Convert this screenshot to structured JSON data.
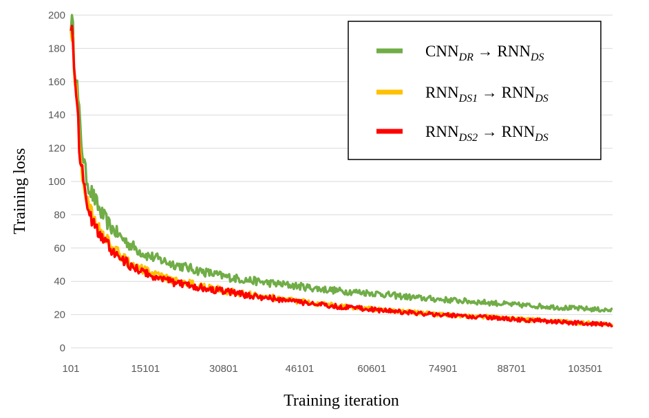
{
  "chart_data": {
    "type": "line",
    "xlabel": "Training iteration",
    "ylabel": "Training loss",
    "x_tick_labels": [
      "101",
      "15101",
      "30801",
      "46101",
      "60601",
      "74901",
      "88701",
      "103501"
    ],
    "y_tick_labels": [
      "0",
      "20",
      "40",
      "60",
      "80",
      "100",
      "120",
      "140",
      "160",
      "180",
      "200"
    ],
    "xlim": [
      101,
      109000
    ],
    "ylim": [
      0,
      200
    ],
    "grid": "horizontal",
    "legend_position": "top-right",
    "legend": [
      {
        "main": "CNN",
        "sub": "DR",
        "arrow": "→",
        "target_main": "RNN",
        "target_sub": "DS",
        "color": "#70ad47"
      },
      {
        "main": "RNN",
        "sub": "DS1",
        "arrow": "→",
        "target_main": "RNN",
        "target_sub": "DS",
        "color": "#ffc000"
      },
      {
        "main": "RNN",
        "sub": "DS2",
        "arrow": "→",
        "target_main": "RNN",
        "target_sub": "DS",
        "color": "#ff0000"
      }
    ],
    "series": [
      {
        "name": "CNN_DR → RNN_DS",
        "color": "#70ad47",
        "x": [
          101,
          1000,
          2000,
          3000,
          4000,
          6000,
          8000,
          10000,
          12000,
          15101,
          20000,
          25000,
          30801,
          35000,
          40000,
          46101,
          50000,
          55000,
          60601,
          65000,
          70000,
          74901,
          80000,
          85000,
          88701,
          95000,
          100000,
          103501,
          109000
        ],
        "y": [
          200,
          170,
          130,
          105,
          95,
          82,
          73,
          67,
          62,
          56,
          51,
          47,
          43,
          41,
          39,
          37,
          35.5,
          34,
          33,
          31.5,
          30,
          29,
          28,
          27,
          26,
          25,
          24,
          23.5,
          22.5
        ]
      },
      {
        "name": "RNN_DS1 → RNN_DS",
        "color": "#ffc000",
        "x": [
          101,
          1000,
          2000,
          3000,
          4000,
          6000,
          8000,
          10000,
          12000,
          15101,
          20000,
          25000,
          30801,
          35000,
          40000,
          46101,
          50000,
          55000,
          60601,
          65000,
          70000,
          74901,
          80000,
          85000,
          88701,
          95000,
          100000,
          103501,
          109000
        ],
        "y": [
          200,
          160,
          115,
          92,
          82,
          70,
          62,
          56,
          51,
          46,
          41,
          38,
          34.5,
          32.5,
          30.5,
          28,
          26.5,
          25,
          23.5,
          22.5,
          21,
          20,
          19.2,
          18.5,
          17.5,
          16.5,
          15.5,
          15,
          14
        ]
      },
      {
        "name": "RNN_DS2 → RNN_DS",
        "color": "#ff0000",
        "x": [
          101,
          1000,
          2000,
          3000,
          4000,
          6000,
          8000,
          10000,
          12000,
          15101,
          20000,
          25000,
          30801,
          35000,
          40000,
          46101,
          50000,
          55000,
          60601,
          65000,
          70000,
          74901,
          80000,
          85000,
          88701,
          95000,
          100000,
          103501,
          109000
        ],
        "y": [
          200,
          158,
          113,
          90,
          80,
          68,
          60,
          54,
          49.5,
          45,
          40,
          37,
          34,
          32,
          30,
          27.5,
          26,
          24.5,
          23,
          22,
          20.8,
          19.8,
          19,
          18.2,
          17.2,
          16.2,
          15.2,
          14.8,
          13.8
        ]
      }
    ]
  }
}
